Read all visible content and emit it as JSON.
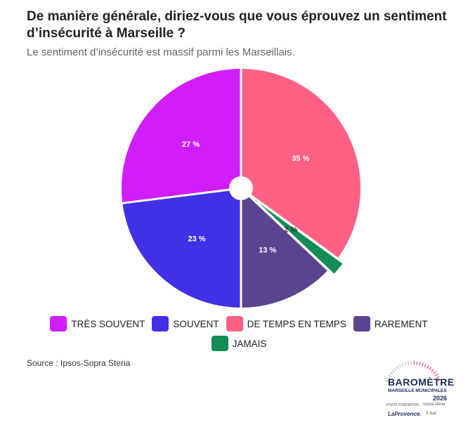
{
  "header": {
    "title": "De manière générale, diriez-vous que vous éprouvez un sentiment d’insécurité à Marseille ?",
    "subtitle": "Le sentiment d’insécurité est massif parmi les Marseillais."
  },
  "chart_data": {
    "type": "pie",
    "categories": [
      "TRÈS SOUVENT",
      "SOUVENT",
      "DE TEMPS EN TEMPS",
      "RAREMENT",
      "JAMAIS"
    ],
    "values": [
      27,
      23,
      35,
      13,
      2
    ],
    "labels": [
      "27 %",
      "23 %",
      "35 %",
      "13 %",
      "2 %"
    ],
    "colors": [
      "#d21dfb",
      "#4031e6",
      "#ff6083",
      "#5b448f",
      "#148c56"
    ],
    "legend_position": "bottom"
  },
  "footer": {
    "source": "Source : Ipsos-Sopra Steria"
  },
  "logo": {
    "title": "BAROMÈTRE",
    "subtitle": "MARSEILLE MUNICIPALES",
    "year": "2026",
    "partner_1": "IPSOS FONDATION",
    "partner_2": "sopra steria",
    "partner_3": "LaProvence.",
    "partner_4": "3 sud"
  }
}
